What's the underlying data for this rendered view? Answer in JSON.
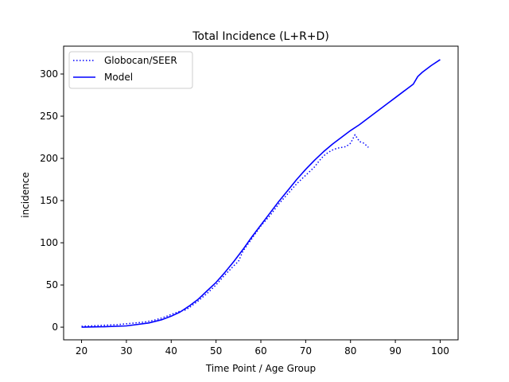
{
  "chart_data": {
    "type": "line",
    "title": "Total Incidence (L+R+D)",
    "xlabel": "Time Point / Age Group",
    "ylabel": "incidence",
    "xlim": [
      16,
      104
    ],
    "ylim": [
      -15,
      333
    ],
    "xticks": [
      20,
      30,
      40,
      50,
      60,
      70,
      80,
      90,
      100
    ],
    "yticks": [
      0,
      50,
      100,
      150,
      200,
      250,
      300
    ],
    "grid": false,
    "legend_position": "top-left",
    "colors": {
      "series": "#0000ff",
      "axis": "#000000",
      "background": "#ffffff"
    },
    "series": [
      {
        "name": "Globocan/SEER",
        "style": "dotted",
        "x": [
          20,
          22,
          24,
          26,
          28,
          30,
          32,
          34,
          36,
          38,
          40,
          42,
          43,
          44,
          46,
          48,
          50,
          52,
          54,
          55,
          56,
          58,
          60,
          62,
          64,
          66,
          68,
          70,
          72,
          73,
          74,
          75,
          76,
          77,
          78,
          79,
          80,
          81,
          82,
          83,
          84
        ],
        "y": [
          1,
          1.5,
          2,
          2.5,
          3,
          4,
          5,
          6,
          8,
          11,
          15,
          19,
          20,
          23,
          31,
          40,
          50,
          62,
          73,
          78,
          90,
          105,
          120,
          132,
          146,
          158,
          170,
          180,
          190,
          197,
          203,
          207,
          210,
          212,
          213,
          214,
          218,
          228,
          220,
          218,
          213
        ]
      },
      {
        "name": "Model",
        "style": "solid",
        "x": [
          20,
          25,
          30,
          35,
          38,
          40,
          42,
          44,
          46,
          48,
          50,
          52,
          54,
          56,
          58,
          60,
          62,
          64,
          66,
          68,
          70,
          72,
          74,
          76,
          78,
          80,
          82,
          84,
          86,
          88,
          90,
          92,
          94,
          95,
          96,
          98,
          100
        ],
        "y": [
          0,
          0.5,
          1.5,
          5,
          9,
          13,
          18,
          25,
          33,
          43,
          53,
          65,
          78,
          92,
          107,
          121,
          135,
          149,
          162,
          175,
          187,
          198,
          208,
          217,
          225,
          233,
          240,
          248,
          256,
          264,
          272,
          280,
          288,
          297,
          302,
          310,
          317
        ]
      }
    ]
  }
}
